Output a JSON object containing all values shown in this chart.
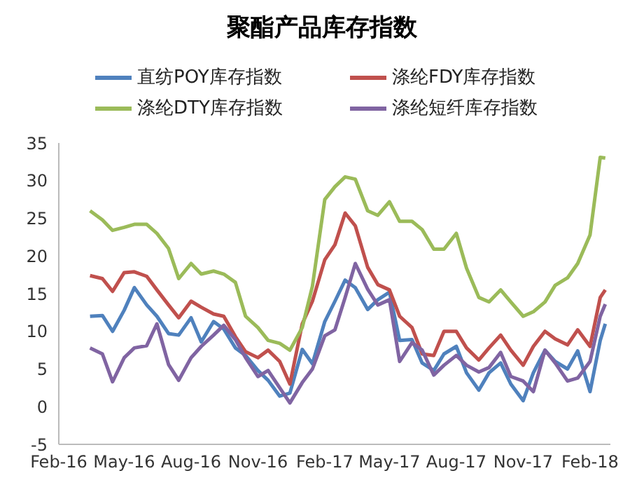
{
  "chart_data": {
    "type": "line",
    "title": "聚酯产品库存指数",
    "legend": "top",
    "grid": false,
    "marker": "none",
    "line_style": "solid",
    "x": [
      "2016-03-15",
      "2016-04-01",
      "2016-04-15",
      "2016-05-01",
      "2016-05-15",
      "2016-06-01",
      "2016-06-15",
      "2016-07-01",
      "2016-07-15",
      "2016-08-01",
      "2016-08-15",
      "2016-09-01",
      "2016-09-15",
      "2016-10-01",
      "2016-10-15",
      "2016-11-01",
      "2016-11-15",
      "2016-12-01",
      "2016-12-15",
      "2017-01-01",
      "2017-01-15",
      "2017-02-01",
      "2017-02-15",
      "2017-03-01",
      "2017-03-15",
      "2017-04-01",
      "2017-04-15",
      "2017-05-01",
      "2017-05-15",
      "2017-06-01",
      "2017-06-15",
      "2017-07-01",
      "2017-07-15",
      "2017-08-01",
      "2017-08-15",
      "2017-09-01",
      "2017-09-15",
      "2017-10-01",
      "2017-10-15",
      "2017-11-01",
      "2017-11-15",
      "2017-12-01",
      "2017-12-15",
      "2018-01-01",
      "2018-01-15",
      "2018-02-01",
      "2018-02-15",
      "2018-02-22"
    ],
    "xlim": [
      "2016-02-01",
      "2018-03-01"
    ],
    "xticks": [
      {
        "value": "2016-02-01",
        "label": "Feb-16"
      },
      {
        "value": "2016-05-01",
        "label": "May-16"
      },
      {
        "value": "2016-08-01",
        "label": "Aug-16"
      },
      {
        "value": "2016-11-01",
        "label": "Nov-16"
      },
      {
        "value": "2017-02-01",
        "label": "Feb-17"
      },
      {
        "value": "2017-05-01",
        "label": "May-17"
      },
      {
        "value": "2017-08-01",
        "label": "Aug-17"
      },
      {
        "value": "2017-11-01",
        "label": "Nov-17"
      },
      {
        "value": "2018-02-01",
        "label": "Feb-18"
      }
    ],
    "ylim": [
      -5,
      35
    ],
    "yticks": [
      -5,
      0,
      5,
      10,
      15,
      20,
      25,
      30,
      35
    ],
    "series": [
      {
        "name": "直纺POY库存指数",
        "color": "#4f81bd",
        "values": [
          12,
          12.1,
          10,
          12.8,
          15.8,
          13.5,
          12,
          9.7,
          9.5,
          11.8,
          8.6,
          11.3,
          10.3,
          7.8,
          6.8,
          4.8,
          3.5,
          1.4,
          1.8,
          7.6,
          5.7,
          11.3,
          14,
          16.8,
          15.8,
          12.9,
          14.2,
          15.2,
          8.8,
          8.9,
          5.8,
          4.8,
          7,
          8,
          4.5,
          2.2,
          4.5,
          5.8,
          3,
          0.8,
          4.5,
          7.5,
          6,
          5,
          7.4,
          2,
          8.8,
          11
        ]
      },
      {
        "name": "涤纶FDY库存指数",
        "color": "#c0504d",
        "values": [
          17.4,
          17,
          15.3,
          17.8,
          17.9,
          17.3,
          15.5,
          13.5,
          11.8,
          14,
          13.2,
          12.3,
          12,
          9.3,
          7.3,
          6.5,
          7.5,
          6,
          3,
          11,
          14,
          19.5,
          21.5,
          25.7,
          24,
          18.5,
          16.2,
          15.5,
          12,
          10.5,
          7,
          6.8,
          10,
          10,
          7.8,
          6.2,
          7.8,
          9.5,
          7.5,
          5.5,
          8,
          10,
          9,
          8.2,
          10.2,
          8,
          14.5,
          15.5
        ]
      },
      {
        "name": "涤纶DTY库存指数",
        "color": "#9bbb59",
        "values": [
          26,
          24.8,
          23.4,
          23.8,
          24.2,
          24.2,
          23,
          21,
          17,
          19,
          17.6,
          18,
          17.6,
          16.5,
          12,
          10.5,
          8.8,
          8.4,
          7.5,
          10.5,
          16,
          27.5,
          29.2,
          30.5,
          30.2,
          26,
          25.4,
          27.2,
          24.6,
          24.6,
          23.5,
          20.9,
          20.9,
          23,
          18.4,
          14.5,
          13.9,
          15.5,
          13.9,
          12,
          12.6,
          13.9,
          16.1,
          17.1,
          19,
          22.8,
          33.1,
          33
        ]
      },
      {
        "name": "涤纶短纤库存指数",
        "color": "#8064a2",
        "values": [
          7.8,
          7,
          3.3,
          6.5,
          7.8,
          8.1,
          11,
          5.6,
          3.5,
          6.5,
          8,
          9.5,
          10.8,
          8.9,
          6.5,
          4,
          4.8,
          2.5,
          0.5,
          3.2,
          5,
          9.4,
          10.2,
          14.5,
          19,
          15.6,
          13.5,
          14.2,
          6,
          8.5,
          7.5,
          4.2,
          5.5,
          6.8,
          5.5,
          4.6,
          5.2,
          7.2,
          4,
          3.4,
          2,
          7.5,
          5.8,
          3.4,
          3.8,
          6,
          12,
          13.6
        ]
      }
    ]
  }
}
